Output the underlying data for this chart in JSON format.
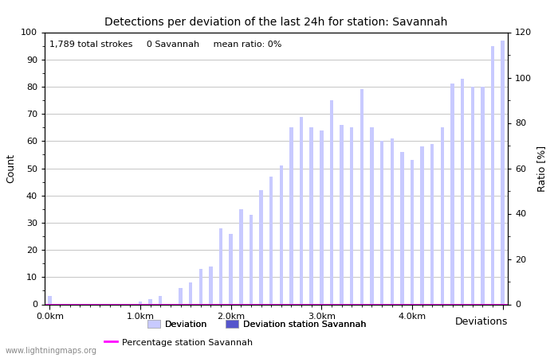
{
  "title": "Detections per deviation of the last 24h for station: Savannah",
  "annotation_parts": [
    "1,789 total strokes",
    "0 Savannah",
    "mean ratio: 0%"
  ],
  "ylabel_left": "Count",
  "ylabel_right": "Ratio [%]",
  "ylim_left": [
    0,
    100
  ],
  "ylim_right": [
    0,
    120
  ],
  "xtick_positions": [
    0,
    9,
    18,
    27,
    36,
    45
  ],
  "xtick_labels": [
    "0.0km",
    "1.0km",
    "2.0km",
    "3.0km",
    "4.0km",
    ""
  ],
  "ytick_left": [
    0,
    10,
    20,
    30,
    40,
    50,
    60,
    70,
    80,
    90,
    100
  ],
  "ytick_right": [
    0,
    20,
    40,
    60,
    80,
    100,
    120
  ],
  "bar_values": [
    3,
    0,
    0,
    0,
    0,
    0,
    0,
    0,
    0,
    1,
    2,
    3,
    0,
    6,
    8,
    13,
    14,
    28,
    26,
    35,
    33,
    42,
    47,
    51,
    65,
    69,
    65,
    64,
    75,
    66,
    65,
    79,
    65,
    60,
    61,
    56,
    53,
    58,
    59,
    65,
    81,
    83,
    80,
    80,
    95,
    97
  ],
  "bar_color_light": "#c8caff",
  "bar_color_dark": "#5555cc",
  "ratio_color": "#ff00ff",
  "grid_color": "#bbbbbb",
  "background_color": "#ffffff",
  "watermark": "www.lightningmaps.org",
  "legend_label_light": "Deviation",
  "legend_label_dark": "Deviation station Savannah",
  "legend_label_ratio": "Percentage station Savannah",
  "xlabel_right": "Deviations"
}
